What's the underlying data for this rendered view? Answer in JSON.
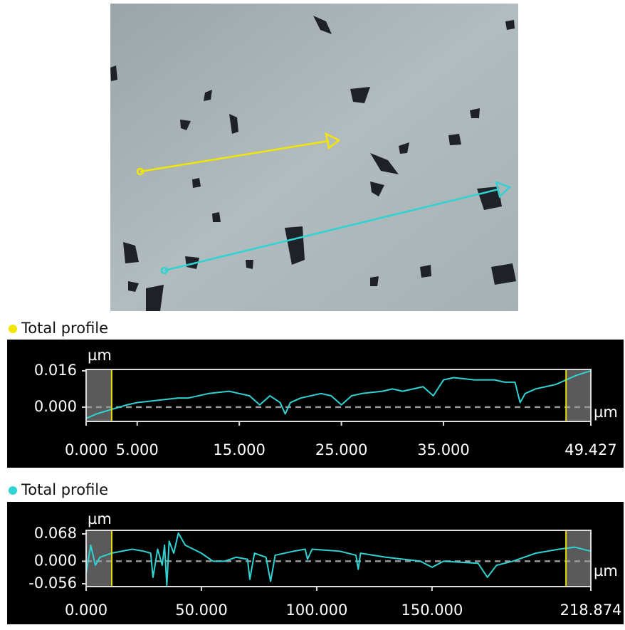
{
  "chart_data": [
    {
      "type": "line",
      "title": "Total profile",
      "marker_color": "#f2e600",
      "color": "#2fd3d3",
      "y_unit": "µm",
      "x_unit": "µm",
      "x": [
        0,
        1,
        2.5,
        4,
        5,
        7,
        9,
        10,
        12,
        14,
        15,
        16,
        17,
        18,
        19,
        19.5,
        20,
        21,
        23,
        24,
        25,
        26,
        27,
        29,
        30,
        31,
        33,
        34,
        35,
        36,
        38,
        40,
        41,
        42,
        42.5,
        43,
        44,
        45,
        46,
        47,
        48,
        49.427
      ],
      "values": [
        -0.005,
        -0.003,
        -0.001,
        0.001,
        0.002,
        0.003,
        0.004,
        0.004,
        0.006,
        0.007,
        0.006,
        0.005,
        0.001,
        0.005,
        0.002,
        -0.003,
        0.002,
        0.004,
        0.006,
        0.005,
        0.001,
        0.005,
        0.006,
        0.007,
        0.008,
        0.007,
        0.009,
        0.005,
        0.012,
        0.013,
        0.012,
        0.012,
        0.011,
        0.011,
        0.002,
        0.006,
        0.008,
        0.009,
        0.01,
        0.012,
        0.014,
        0.016
      ],
      "cursors": [
        2.5,
        47.0
      ],
      "xlim": [
        0,
        49.427
      ],
      "xticks": [
        {
          "value": 0,
          "label": "0.000"
        },
        {
          "value": 5,
          "label": "5.000"
        },
        {
          "value": 15,
          "label": "15.000"
        },
        {
          "value": 25,
          "label": "25.000"
        },
        {
          "value": 35,
          "label": "35.000"
        },
        49.427
      ],
      "ylim": [
        -0.0063,
        0.0166
      ],
      "yticks": [
        {
          "value": 0,
          "label": "0.000"
        },
        0.016
      ]
    },
    {
      "type": "line",
      "title": "Total profile",
      "marker_color": "#2fd3d3",
      "color": "#2fd3d3",
      "y_unit": "µm",
      "x_unit": "µm",
      "x": [
        0,
        2,
        4,
        6,
        11,
        20,
        25,
        28,
        29,
        31,
        33,
        34,
        35,
        36,
        38,
        40,
        43,
        50,
        55,
        60,
        65,
        70,
        71,
        73,
        78,
        80,
        82,
        90,
        95,
        96,
        98,
        110,
        117,
        118,
        119,
        130,
        145,
        150,
        155,
        170,
        174,
        178,
        185,
        195,
        205,
        212,
        218.874
      ],
      "values": [
        -0.03,
        0.04,
        -0.01,
        0.01,
        0.02,
        0.03,
        0.025,
        0.02,
        -0.04,
        0.03,
        -0.01,
        0.04,
        -0.06,
        0.05,
        0.02,
        0.07,
        0.04,
        0.02,
        0.0,
        0.0,
        0.01,
        0.005,
        -0.045,
        0.02,
        0.01,
        -0.05,
        0.015,
        0.025,
        0.03,
        0.005,
        0.03,
        0.025,
        0.015,
        -0.02,
        0.02,
        0.01,
        0.0,
        -0.015,
        0.0,
        -0.005,
        -0.04,
        -0.01,
        0.0,
        0.02,
        0.03,
        0.035,
        0.025
      ],
      "cursors": [
        11.1,
        208.1
      ],
      "xlim": [
        0,
        218.874
      ],
      "xticks": [
        {
          "value": 0,
          "label": "0.000"
        },
        {
          "value": 50,
          "label": "50.000"
        },
        {
          "value": 100,
          "label": "100.000"
        },
        {
          "value": 150,
          "label": "150.000"
        },
        218.874
      ],
      "ylim": [
        -0.063,
        0.0769
      ],
      "yticks": [
        -0.056,
        {
          "value": 0,
          "label": "0.000"
        },
        0.068
      ]
    }
  ]
}
